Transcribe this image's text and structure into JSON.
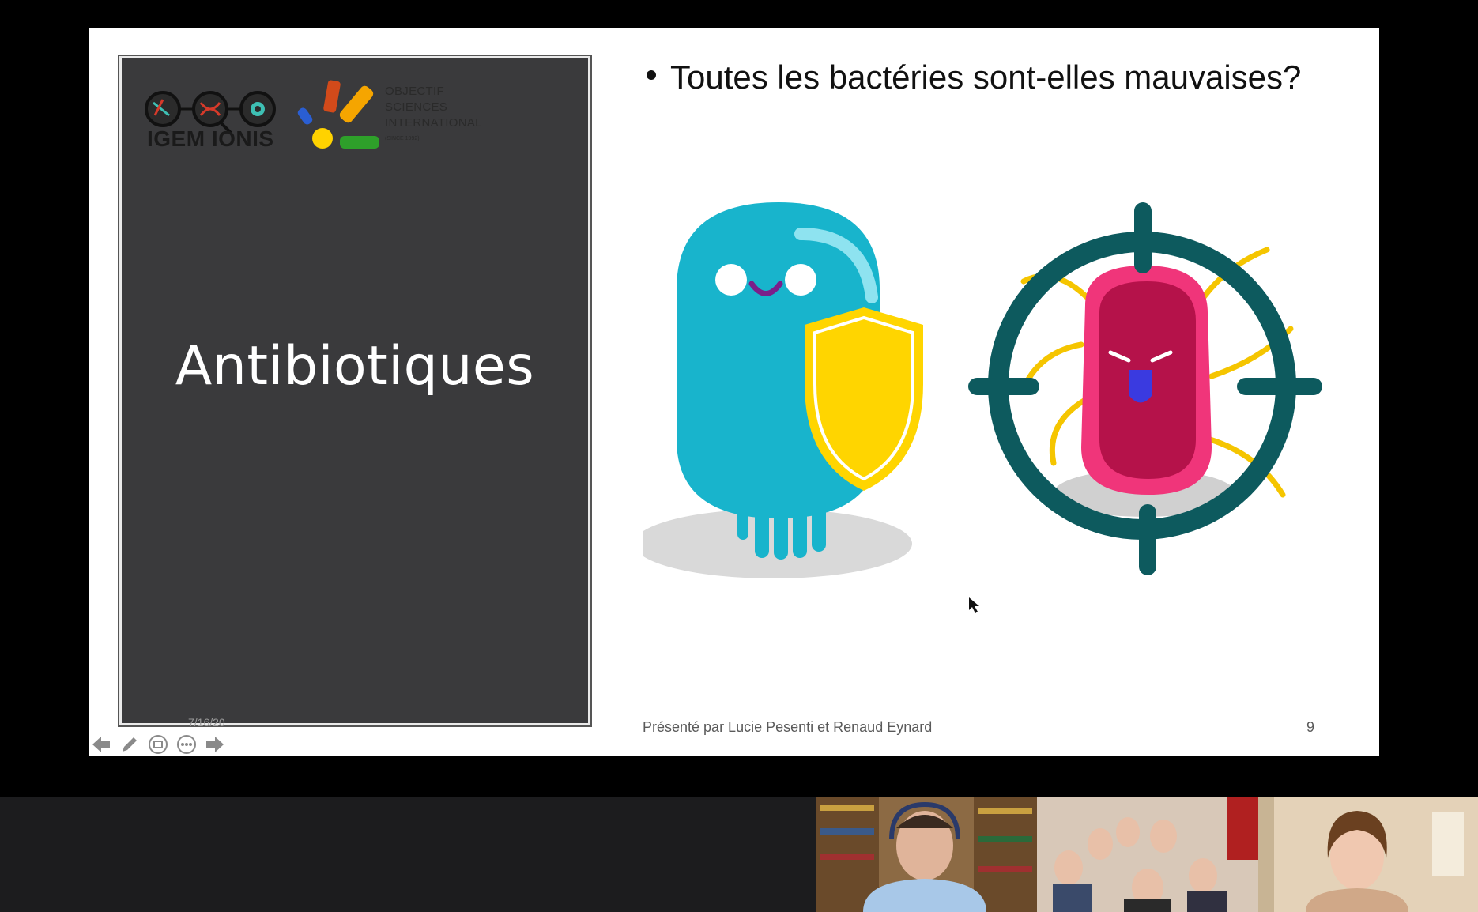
{
  "slide": {
    "panel_title": "Antibiotiques",
    "logos": {
      "igem_label": "IGEM IONIS",
      "osi_lines": [
        "OBJECTIF",
        "SCIENCES",
        "INTERNATIONAL"
      ],
      "osi_since": "(SINCE 1992)"
    },
    "bullet": "Toutes les bactéries sont-elles mauvaises?",
    "footer": "Présenté par Lucie Pesenti et Renaud Eynard",
    "page_number": "9",
    "date": "7/16/20"
  },
  "colors": {
    "panel_bg": "#3a3a3c",
    "good_bacterium": "#18b4cc",
    "shield": "#ffd500",
    "bad_bacterium": "#c8124f",
    "crosshair": "#0d5a5e"
  },
  "icons": {
    "prev": "arrow-left-icon",
    "pen": "pen-icon",
    "slides": "slide-grid-icon",
    "more": "more-options-icon",
    "next": "arrow-right-icon"
  },
  "participants": [
    {
      "id": "participant-1"
    },
    {
      "id": "participant-2"
    },
    {
      "id": "participant-3"
    }
  ]
}
